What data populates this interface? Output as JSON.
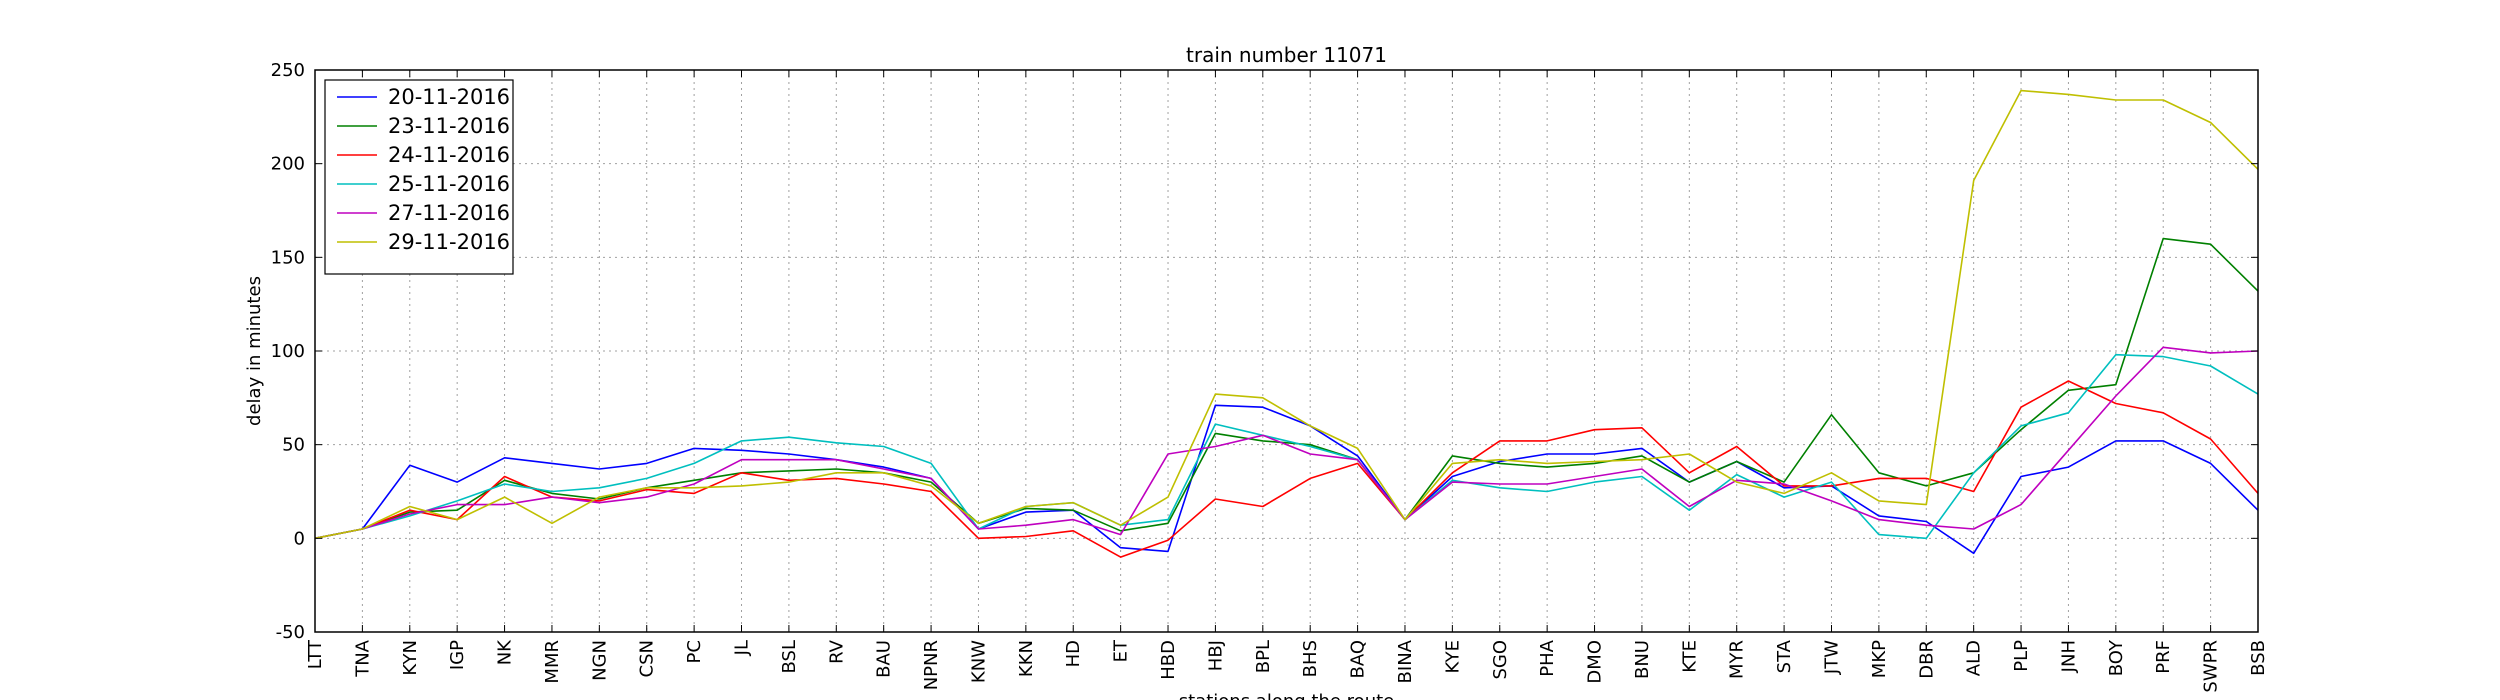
{
  "chart_data": {
    "type": "line",
    "title": "train number 11071",
    "xlabel": "stations along the route",
    "ylabel": "delay in minutes",
    "ylim": [
      -50,
      250
    ],
    "yticks": [
      -50,
      0,
      50,
      100,
      150,
      200,
      250
    ],
    "grid": true,
    "legend_position": "top-left",
    "categories": [
      "LTT",
      "TNA",
      "KYN",
      "IGP",
      "NK",
      "MMR",
      "NGN",
      "CSN",
      "PC",
      "JL",
      "BSL",
      "RV",
      "BAU",
      "NPNR",
      "KNW",
      "KKN",
      "HD",
      "ET",
      "HBD",
      "HBJ",
      "BPL",
      "BHS",
      "BAQ",
      "BINA",
      "KYE",
      "SGO",
      "PHA",
      "DMO",
      "BNU",
      "KTE",
      "MYR",
      "STA",
      "JTW",
      "MKP",
      "DBR",
      "ALD",
      "PLP",
      "JNH",
      "BOY",
      "PRF",
      "SWPR",
      "BSB"
    ],
    "series": [
      {
        "name": "20-11-2016",
        "color": "#0000ff",
        "values": [
          0,
          5,
          39,
          30,
          43,
          40,
          37,
          40,
          48,
          47,
          45,
          42,
          38,
          32,
          5,
          14,
          15,
          -5,
          -7,
          71,
          70,
          60,
          44,
          10,
          33,
          41,
          45,
          45,
          48,
          30,
          41,
          27,
          28,
          12,
          9,
          -8,
          33,
          38,
          52,
          52,
          40,
          15
        ]
      },
      {
        "name": "23-11-2016",
        "color": "#008000",
        "values": [
          0,
          5,
          14,
          15,
          31,
          24,
          21,
          27,
          31,
          35,
          36,
          37,
          35,
          30,
          8,
          16,
          15,
          4,
          8,
          56,
          52,
          50,
          42,
          10,
          44,
          40,
          38,
          40,
          44,
          30,
          41,
          30,
          66,
          35,
          28,
          35,
          58,
          79,
          82,
          160,
          157,
          132
        ]
      },
      {
        "name": "24-11-2016",
        "color": "#ff0000",
        "values": [
          0,
          5,
          15,
          10,
          33,
          22,
          20,
          26,
          24,
          35,
          31,
          32,
          29,
          25,
          0,
          1,
          4,
          -10,
          -1,
          21,
          17,
          32,
          40,
          10,
          35,
          52,
          52,
          58,
          59,
          35,
          49,
          28,
          28,
          32,
          32,
          25,
          70,
          84,
          72,
          67,
          53,
          24
        ]
      },
      {
        "name": "25-11-2016",
        "color": "#00bfbf",
        "values": [
          0,
          5,
          12,
          20,
          29,
          25,
          27,
          32,
          40,
          52,
          54,
          51,
          49,
          40,
          5,
          17,
          19,
          7,
          10,
          61,
          55,
          49,
          42,
          10,
          31,
          27,
          25,
          30,
          33,
          15,
          34,
          22,
          30,
          2,
          0,
          35,
          60,
          67,
          98,
          97,
          92,
          77
        ]
      },
      {
        "name": "27-11-2016",
        "color": "#bf00bf",
        "values": [
          0,
          5,
          13,
          18,
          18,
          22,
          19,
          22,
          29,
          42,
          42,
          42,
          37,
          32,
          5,
          7,
          10,
          2,
          45,
          49,
          55,
          45,
          42,
          10,
          30,
          29,
          29,
          33,
          37,
          17,
          31,
          29,
          20,
          10,
          7,
          5,
          18,
          47,
          76,
          102,
          99,
          100
        ]
      },
      {
        "name": "29-11-2016",
        "color": "#bfbf00",
        "values": [
          0,
          5,
          17,
          10,
          22,
          8,
          22,
          27,
          27,
          28,
          30,
          35,
          35,
          28,
          8,
          17,
          19,
          7,
          22,
          77,
          75,
          60,
          48,
          10,
          40,
          42,
          40,
          41,
          42,
          45,
          30,
          24,
          35,
          20,
          18,
          191,
          239,
          237,
          234,
          234,
          222,
          197
        ]
      }
    ]
  }
}
